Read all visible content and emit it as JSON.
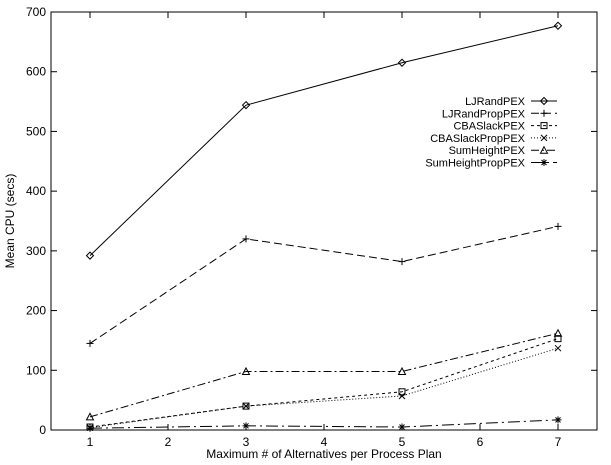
{
  "chart_data": {
    "type": "line",
    "title": "",
    "xlabel": "Maximum # of Alternatives per Process Plan",
    "ylabel": "Mean CPU (secs)",
    "xlim": [
      0.5,
      7.5
    ],
    "ylim": [
      0,
      700
    ],
    "xticks": [
      1,
      2,
      3,
      4,
      5,
      6,
      7
    ],
    "yticks": [
      0,
      100,
      200,
      300,
      400,
      500,
      600,
      700
    ],
    "grid": false,
    "legend_position": "top-right",
    "x": [
      1,
      3,
      5,
      7
    ],
    "series": [
      {
        "name": "LJRandPEX",
        "values": [
          292,
          544,
          615,
          677
        ],
        "marker": "diamond",
        "dash": ""
      },
      {
        "name": "LJRandPropPEX",
        "values": [
          145,
          320,
          282,
          341
        ],
        "marker": "plus",
        "dash": "8,4"
      },
      {
        "name": "CBASlackPEX",
        "values": [
          5,
          40,
          64,
          153
        ],
        "marker": "square",
        "dash": "3,3"
      },
      {
        "name": "CBASlackPropPEX",
        "values": [
          4,
          40,
          57,
          137
        ],
        "marker": "cross",
        "dash": "1,2"
      },
      {
        "name": "SumHeightPEX",
        "values": [
          22,
          98,
          98,
          162
        ],
        "marker": "triangle",
        "dash": "8,3,2,3"
      },
      {
        "name": "SumHeightPropPEX",
        "values": [
          3,
          7,
          5,
          17
        ],
        "marker": "star",
        "dash": "12,4,2,4"
      }
    ]
  }
}
